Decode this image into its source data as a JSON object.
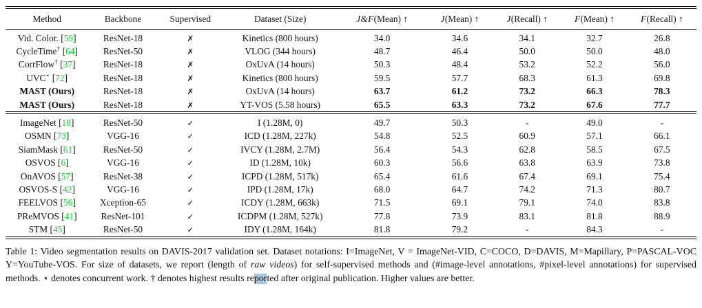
{
  "colors": {
    "citation_green": "#00dd22",
    "highlight_blue": "#a9c6de",
    "rule_black": "#000000"
  },
  "table": {
    "columns": [
      {
        "key": "method",
        "label": "Method"
      },
      {
        "key": "backbone",
        "label": "Backbone"
      },
      {
        "key": "supervised",
        "label": "Supervised"
      },
      {
        "key": "dataset",
        "label": "Dataset (Size)"
      },
      {
        "key": "jf-mean",
        "label": "J&F(Mean) ↑",
        "sym": "J&F",
        "rest": "(Mean) ↑"
      },
      {
        "key": "j-mean",
        "label": "J(Mean) ↑",
        "sym": "J",
        "rest": "(Mean) ↑"
      },
      {
        "key": "j-recall",
        "label": "J(Recall) ↑",
        "sym": "J",
        "rest": "(Recall) ↑"
      },
      {
        "key": "f-mean",
        "label": "F(Mean) ↑",
        "sym": "F",
        "rest": "(Mean) ↑"
      },
      {
        "key": "f-recall",
        "label": "F(Recall) ↑",
        "sym": "F",
        "rest": "(Recall) ↑"
      }
    ],
    "sections": [
      {
        "name": "self-supervised",
        "rows": [
          {
            "method": "Vid. Color.",
            "sup": "",
            "cite": "59",
            "backbone": "ResNet-18",
            "supervised": "✗",
            "dataset": "Kinetics (800 hours)",
            "bold": false,
            "vals": [
              "34.0",
              "34.6",
              "34.1",
              "32.7",
              "26.8"
            ]
          },
          {
            "method": "CycleTime",
            "sup": "†",
            "cite": "64",
            "backbone": "ResNet-50",
            "supervised": "✗",
            "dataset": "VLOG (344 hours)",
            "bold": false,
            "vals": [
              "48.7",
              "46.4",
              "50.0",
              "50.0",
              "48.0"
            ]
          },
          {
            "method": "CorrFlow",
            "sup": "†",
            "cite": "37",
            "backbone": "ResNet-18",
            "supervised": "✗",
            "dataset": "OxUvA (14 hours)",
            "bold": false,
            "vals": [
              "50.3",
              "48.4",
              "53.2",
              "52.2",
              "56.0"
            ]
          },
          {
            "method": "UVC",
            "sup": "⋆",
            "cite": "72",
            "backbone": "ResNet-18",
            "supervised": "✗",
            "dataset": "Kinetics (800 hours)",
            "bold": false,
            "vals": [
              "59.5",
              "57.7",
              "68.3",
              "61.3",
              "69.8"
            ]
          },
          {
            "method": "MAST (Ours)",
            "sup": "",
            "cite": "",
            "backbone": "ResNet-18",
            "supervised": "✗",
            "dataset": "OxUvA (14 hours)",
            "bold": true,
            "vals": [
              "63.7",
              "61.2",
              "73.2",
              "66.3",
              "78.3"
            ]
          },
          {
            "method": "MAST (Ours)",
            "sup": "",
            "cite": "",
            "backbone": "ResNet-18",
            "supervised": "✗",
            "dataset": "YT-VOS (5.58 hours)",
            "bold": true,
            "vals": [
              "65.5",
              "63.3",
              "73.2",
              "67.6",
              "77.7"
            ]
          }
        ]
      },
      {
        "name": "supervised",
        "rows": [
          {
            "method": "ImageNet",
            "sup": "",
            "cite": "18",
            "backbone": "ResNet-50",
            "supervised": "✓",
            "dataset": "I (1.28M, 0)",
            "bold": false,
            "vals": [
              "49.7",
              "50.3",
              "-",
              "49.0",
              "-"
            ]
          },
          {
            "method": "OSMN",
            "sup": "",
            "cite": "73",
            "backbone": "VGG-16",
            "supervised": "✓",
            "dataset": "ICD (1.28M, 227k)",
            "bold": false,
            "vals": [
              "54.8",
              "52.5",
              "60.9",
              "57.1",
              "66.1"
            ]
          },
          {
            "method": "SiamMask",
            "sup": "",
            "cite": "61",
            "backbone": "ResNet-50",
            "supervised": "✓",
            "dataset": "IVCY (1.28M, 2.7M)",
            "bold": false,
            "vals": [
              "56.4",
              "54.3",
              "62.8",
              "58.5",
              "67.5"
            ]
          },
          {
            "method": "OSVOS",
            "sup": "",
            "cite": "6",
            "backbone": "VGG-16",
            "supervised": "✓",
            "dataset": "ID (1.28M, 10k)",
            "bold": false,
            "vals": [
              "60.3",
              "56.6",
              "63.8",
              "63.9",
              "73.8"
            ]
          },
          {
            "method": "OnAVOS",
            "sup": "",
            "cite": "57",
            "backbone": "ResNet-38",
            "supervised": "✓",
            "dataset": "ICPD (1.28M, 517k)",
            "bold": false,
            "vals": [
              "65.4",
              "61.6",
              "67.4",
              "69.1",
              "75.4"
            ]
          },
          {
            "method": "OSVOS-S",
            "sup": "",
            "cite": "42",
            "backbone": "VGG-16",
            "supervised": "✓",
            "dataset": "IPD (1.28M, 17k)",
            "bold": false,
            "vals": [
              "68.0",
              "64.7",
              "74.2",
              "71.3",
              "80.7"
            ]
          },
          {
            "method": "FEELVOS",
            "sup": "",
            "cite": "56",
            "backbone": "Xception-65",
            "supervised": "✓",
            "dataset": "ICDY (1.28M, 663k)",
            "bold": false,
            "vals": [
              "71.5",
              "69.1",
              "79.1",
              "74.0",
              "83.8"
            ]
          },
          {
            "method": "PReMVOS",
            "sup": "",
            "cite": "41",
            "backbone": "ResNet-101",
            "supervised": "✓",
            "dataset": "ICDPM (1.28M, 527k)",
            "bold": false,
            "vals": [
              "77.8",
              "73.9",
              "83.1",
              "81.8",
              "88.9"
            ]
          },
          {
            "method": "STM",
            "sup": "",
            "cite": "45",
            "backbone": "ResNet-50",
            "supervised": "✓",
            "dataset": "IDY (1.28M, 164k)",
            "bold": false,
            "vals": [
              "81.8",
              "79.2",
              "-",
              "84.3",
              "-"
            ]
          }
        ]
      }
    ]
  },
  "caption": {
    "part1": "Table 1:  Video segmentation results on DAVIS-2017 validation set.  Dataset notations:  I=ImageNet, V = ImageNet-VID, C=COCO, D=DAVIS, M=Mapillary, P=PASCAL-VOC Y=YouTube-VOS. For size of datasets, we report (length of ",
    "italic": "raw videos",
    "part2": ") for self-supervised methods and (#image-level annotations, #pixel-level annotations) for supervised methods.  ⋆ denotes concurrent work.  † denotes highest results re",
    "highlight": "por",
    "part3": "ted after original publication. Higher values are better."
  }
}
